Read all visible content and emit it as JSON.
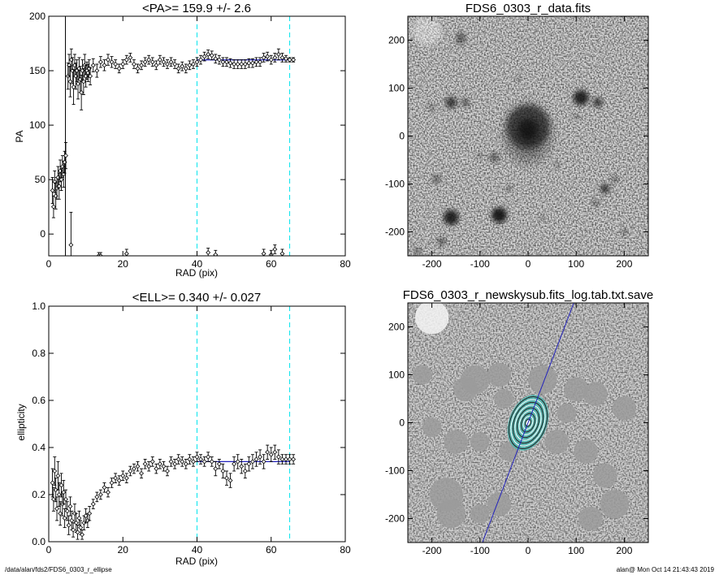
{
  "footer": {
    "left": "/data/alan/fds2/FDS6_0303_r_ellipse",
    "right": "alan@  Mon Oct 14 21:43:43 2019"
  },
  "colors": {
    "fit_line": "#2222bb",
    "range_marker": "#00e5ee",
    "data": "#000000",
    "contour_fill": "#3fb8b0"
  },
  "chart_data": [
    {
      "id": "pa",
      "type": "scatter",
      "title": "<PA>= 159.9 +/-   2.6",
      "xlabel": "RAD (pix)",
      "ylabel": "PA",
      "xlim": [
        0,
        80
      ],
      "ylim": [
        -20,
        200
      ],
      "xticks": [
        0,
        20,
        40,
        60,
        80
      ],
      "yticks": [
        0,
        50,
        100,
        150,
        200
      ],
      "fit_range": [
        40,
        65
      ],
      "fit_value": 159.9,
      "vertical_line_x": 4.5,
      "markers": "diamond with error bars",
      "points": [
        [
          1,
          40,
          12
        ],
        [
          1.3,
          25,
          10
        ],
        [
          1.6,
          48,
          10
        ],
        [
          1.9,
          35,
          12
        ],
        [
          2.2,
          42,
          10
        ],
        [
          2.5,
          52,
          10
        ],
        [
          2.8,
          44,
          12
        ],
        [
          3.1,
          58,
          10
        ],
        [
          3.4,
          50,
          10
        ],
        [
          3.7,
          62,
          10
        ],
        [
          4,
          55,
          12
        ],
        [
          4.3,
          66,
          10
        ],
        [
          4.6,
          72,
          12
        ],
        [
          5.2,
          145,
          12
        ],
        [
          5.5,
          155,
          10
        ],
        [
          5.8,
          140,
          14
        ],
        [
          6.1,
          160,
          10
        ],
        [
          6.4,
          150,
          12
        ],
        [
          6.7,
          135,
          16
        ],
        [
          7,
          155,
          10
        ],
        [
          7.3,
          145,
          12
        ],
        [
          7.6,
          150,
          10
        ],
        [
          7.9,
          138,
          14
        ],
        [
          8.2,
          152,
          10
        ],
        [
          8.5,
          142,
          12
        ],
        [
          8.8,
          130,
          16
        ],
        [
          9.1,
          150,
          10
        ],
        [
          9.4,
          140,
          12
        ],
        [
          9.7,
          155,
          10
        ],
        [
          10,
          145,
          10
        ],
        [
          10.3,
          150,
          8
        ],
        [
          10.6,
          148,
          8
        ],
        [
          10.9,
          152,
          8
        ],
        [
          11.2,
          145,
          8
        ],
        [
          12,
          155,
          6
        ],
        [
          13,
          150,
          6
        ],
        [
          14,
          158,
          5
        ],
        [
          15,
          155,
          5
        ],
        [
          16,
          160,
          5
        ],
        [
          17,
          158,
          5
        ],
        [
          18,
          156,
          4
        ],
        [
          19,
          152,
          4
        ],
        [
          20,
          156,
          4
        ],
        [
          21,
          160,
          4
        ],
        [
          22,
          162,
          4
        ],
        [
          23,
          156,
          4
        ],
        [
          24,
          152,
          4
        ],
        [
          25,
          155,
          4
        ],
        [
          26,
          158,
          4
        ],
        [
          27,
          160,
          4
        ],
        [
          28,
          158,
          4
        ],
        [
          29,
          155,
          4
        ],
        [
          30,
          160,
          4
        ],
        [
          31,
          158,
          4
        ],
        [
          32,
          156,
          4
        ],
        [
          33,
          158,
          4
        ],
        [
          34,
          156,
          4
        ],
        [
          35,
          152,
          4
        ],
        [
          36,
          154,
          4
        ],
        [
          37,
          152,
          4
        ],
        [
          38,
          155,
          4
        ],
        [
          39,
          156,
          4
        ],
        [
          40,
          158,
          4
        ],
        [
          41,
          160,
          4
        ],
        [
          42,
          163,
          4
        ],
        [
          43,
          165,
          4
        ],
        [
          44,
          164,
          4
        ],
        [
          45,
          161,
          4
        ],
        [
          46,
          160,
          4
        ],
        [
          47,
          158,
          4
        ],
        [
          48,
          158,
          4
        ],
        [
          49,
          157,
          4
        ],
        [
          50,
          156,
          4
        ],
        [
          51,
          156,
          4
        ],
        [
          52,
          156,
          4
        ],
        [
          53,
          156,
          4
        ],
        [
          54,
          157,
          4
        ],
        [
          55,
          157,
          4
        ],
        [
          56,
          158,
          4
        ],
        [
          57,
          158,
          4
        ],
        [
          58,
          162,
          4
        ],
        [
          59,
          163,
          4
        ],
        [
          60,
          160,
          4
        ],
        [
          61,
          162,
          4
        ],
        [
          62,
          165,
          5
        ],
        [
          63,
          162,
          4
        ],
        [
          64,
          161,
          3
        ],
        [
          65,
          160,
          2
        ],
        [
          66,
          160,
          2
        ],
        [
          6,
          -10,
          30
        ],
        [
          13.5,
          -20,
          3
        ],
        [
          14,
          -20,
          3
        ],
        [
          21,
          -18,
          4
        ],
        [
          43,
          -17,
          4
        ],
        [
          45,
          -19,
          4
        ],
        [
          58,
          -18,
          4
        ],
        [
          60,
          -19,
          4
        ],
        [
          61,
          -14,
          4
        ],
        [
          63,
          -18,
          4
        ]
      ]
    },
    {
      "id": "ell",
      "type": "scatter",
      "title": "<ELL>= 0.340 +/-  0.027",
      "xlabel": "RAD (pix)",
      "ylabel": "ellipticity",
      "xlim": [
        0,
        80
      ],
      "ylim": [
        0,
        1
      ],
      "xticks": [
        0,
        20,
        40,
        60,
        80
      ],
      "yticks": [
        0.0,
        0.2,
        0.4,
        0.6,
        0.8,
        1.0
      ],
      "fit_range": [
        40,
        65
      ],
      "fit_value": 0.34,
      "markers": "diamond with error bars",
      "points": [
        [
          1,
          0.25,
          0.06
        ],
        [
          1.3,
          0.18,
          0.05
        ],
        [
          1.6,
          0.3,
          0.06
        ],
        [
          1.9,
          0.22,
          0.05
        ],
        [
          2.2,
          0.14,
          0.05
        ],
        [
          2.5,
          0.28,
          0.06
        ],
        [
          2.8,
          0.2,
          0.05
        ],
        [
          3.1,
          0.12,
          0.05
        ],
        [
          3.4,
          0.24,
          0.05
        ],
        [
          3.7,
          0.16,
          0.05
        ],
        [
          4,
          0.21,
          0.05
        ],
        [
          4.3,
          0.1,
          0.04
        ],
        [
          4.6,
          0.18,
          0.04
        ],
        [
          5,
          0.13,
          0.04
        ],
        [
          5.4,
          0.07,
          0.04
        ],
        [
          5.8,
          0.15,
          0.04
        ],
        [
          6.2,
          0.09,
          0.04
        ],
        [
          6.6,
          0.05,
          0.03
        ],
        [
          7,
          0.12,
          0.04
        ],
        [
          7.4,
          0.08,
          0.04
        ],
        [
          7.8,
          0.04,
          0.03
        ],
        [
          8.2,
          0.1,
          0.03
        ],
        [
          8.6,
          0.06,
          0.03
        ],
        [
          9,
          0.03,
          0.02
        ],
        [
          9.5,
          0.08,
          0.03
        ],
        [
          10,
          0.11,
          0.03
        ],
        [
          10.5,
          0.09,
          0.03
        ],
        [
          11,
          0.12,
          0.03
        ],
        [
          12,
          0.16,
          0.02
        ],
        [
          13,
          0.19,
          0.02
        ],
        [
          14,
          0.2,
          0.02
        ],
        [
          15,
          0.23,
          0.02
        ],
        [
          16,
          0.21,
          0.02
        ],
        [
          17,
          0.25,
          0.02
        ],
        [
          18,
          0.27,
          0.02
        ],
        [
          19,
          0.26,
          0.02
        ],
        [
          20,
          0.28,
          0.02
        ],
        [
          21,
          0.27,
          0.02
        ],
        [
          22,
          0.3,
          0.02
        ],
        [
          23,
          0.31,
          0.02
        ],
        [
          24,
          0.32,
          0.02
        ],
        [
          25,
          0.29,
          0.02
        ],
        [
          26,
          0.33,
          0.02
        ],
        [
          27,
          0.32,
          0.02
        ],
        [
          28,
          0.34,
          0.02
        ],
        [
          29,
          0.31,
          0.02
        ],
        [
          30,
          0.33,
          0.02
        ],
        [
          31,
          0.32,
          0.02
        ],
        [
          32,
          0.3,
          0.02
        ],
        [
          33,
          0.34,
          0.02
        ],
        [
          34,
          0.33,
          0.02
        ],
        [
          35,
          0.35,
          0.02
        ],
        [
          36,
          0.34,
          0.02
        ],
        [
          37,
          0.33,
          0.02
        ],
        [
          38,
          0.35,
          0.02
        ],
        [
          39,
          0.34,
          0.02
        ],
        [
          40,
          0.36,
          0.02
        ],
        [
          41,
          0.35,
          0.02
        ],
        [
          42,
          0.34,
          0.02
        ],
        [
          43,
          0.36,
          0.02
        ],
        [
          44,
          0.34,
          0.02
        ],
        [
          45,
          0.31,
          0.03
        ],
        [
          46,
          0.33,
          0.02
        ],
        [
          47,
          0.3,
          0.03
        ],
        [
          48,
          0.27,
          0.03
        ],
        [
          49,
          0.26,
          0.03
        ],
        [
          50,
          0.33,
          0.03
        ],
        [
          51,
          0.34,
          0.03
        ],
        [
          52,
          0.32,
          0.03
        ],
        [
          53,
          0.3,
          0.03
        ],
        [
          54,
          0.33,
          0.03
        ],
        [
          55,
          0.34,
          0.03
        ],
        [
          56,
          0.35,
          0.03
        ],
        [
          57,
          0.36,
          0.03
        ],
        [
          58,
          0.34,
          0.03
        ],
        [
          59,
          0.38,
          0.03
        ],
        [
          60,
          0.37,
          0.03
        ],
        [
          61,
          0.38,
          0.03
        ],
        [
          62,
          0.36,
          0.03
        ],
        [
          63,
          0.35,
          0.02
        ],
        [
          64,
          0.35,
          0.02
        ],
        [
          65,
          0.35,
          0.02
        ],
        [
          66,
          0.35,
          0.02
        ]
      ]
    },
    {
      "id": "img_data",
      "type": "heatmap",
      "title": "FDS6_0303_r_data.fits",
      "xlim": [
        -250,
        250
      ],
      "ylim": [
        -250,
        250
      ],
      "xticks": [
        -200,
        -100,
        0,
        100,
        200
      ],
      "yticks": [
        -200,
        -100,
        0,
        100,
        200
      ],
      "colormap": "inverted grayscale",
      "sources": [
        [
          -210,
          220,
          30,
          0.35
        ],
        [
          -140,
          200,
          10,
          0.45
        ],
        [
          -140,
          210,
          8,
          0.4
        ],
        [
          0,
          20,
          45,
          0.6
        ],
        [
          0,
          15,
          20,
          0.55
        ],
        [
          110,
          80,
          16,
          0.85
        ],
        [
          145,
          70,
          10,
          0.7
        ],
        [
          -160,
          70,
          12,
          0.7
        ],
        [
          -130,
          70,
          8,
          0.6
        ],
        [
          -200,
          60,
          6,
          0.5
        ],
        [
          -160,
          -170,
          16,
          0.85
        ],
        [
          -60,
          -165,
          16,
          0.9
        ],
        [
          -180,
          -220,
          8,
          0.6
        ],
        [
          -70,
          -45,
          10,
          0.5
        ],
        [
          -190,
          -90,
          8,
          0.55
        ],
        [
          160,
          -110,
          10,
          0.7
        ],
        [
          180,
          -90,
          6,
          0.6
        ],
        [
          140,
          -140,
          6,
          0.55
        ],
        [
          100,
          40,
          5,
          0.5
        ],
        [
          60,
          -60,
          5,
          0.4
        ],
        [
          -40,
          -110,
          6,
          0.45
        ],
        [
          30,
          -170,
          5,
          0.4
        ],
        [
          -20,
          120,
          5,
          0.4
        ],
        [
          -100,
          -40,
          5,
          0.45
        ],
        [
          200,
          -200,
          6,
          0.45
        ],
        [
          -230,
          -240,
          7,
          0.5
        ]
      ]
    },
    {
      "id": "img_model",
      "type": "heatmap",
      "title": "FDS6_0303_r_newskysub.fits_log.tab.txt.save",
      "xlim": [
        -250,
        250
      ],
      "ylim": [
        -250,
        250
      ],
      "xticks": [
        -200,
        -100,
        0,
        100,
        200
      ],
      "yticks": [
        -200,
        -100,
        0,
        100,
        200
      ],
      "colormap": "inverted grayscale",
      "major_axis_line": {
        "x1": -95,
        "y1": -250,
        "x2": 95,
        "y2": 250
      },
      "contour_axis_ratio": 0.66,
      "contour_semi_major": [
        8,
        14,
        20,
        26,
        32,
        38,
        44,
        50,
        56
      ],
      "masks": [
        [
          -200,
          220,
          35
        ],
        [
          -110,
          90,
          30
        ],
        [
          -130,
          70,
          25
        ],
        [
          -60,
          100,
          25
        ],
        [
          30,
          90,
          30
        ],
        [
          100,
          70,
          25
        ],
        [
          140,
          60,
          25
        ],
        [
          -150,
          -40,
          25
        ],
        [
          -100,
          -40,
          20
        ],
        [
          -40,
          -60,
          20
        ],
        [
          60,
          -40,
          25
        ],
        [
          120,
          -60,
          25
        ],
        [
          -170,
          -150,
          35
        ],
        [
          -160,
          -190,
          30
        ],
        [
          -60,
          -170,
          25
        ],
        [
          -100,
          -190,
          20
        ],
        [
          160,
          -110,
          25
        ],
        [
          180,
          -170,
          30
        ],
        [
          130,
          -200,
          25
        ],
        [
          -200,
          -10,
          20
        ],
        [
          200,
          30,
          25
        ],
        [
          -50,
          50,
          20
        ],
        [
          80,
          20,
          20
        ],
        [
          -220,
          100,
          20
        ]
      ]
    }
  ]
}
